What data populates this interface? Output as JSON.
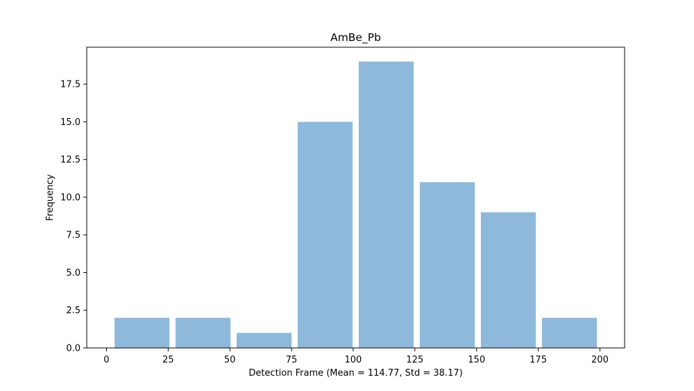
{
  "chart_data": {
    "type": "bar",
    "title": "AmBe_Pb",
    "xlabel": "Detection Frame (Mean = 114.77, Std = 38.17)",
    "ylabel": "Frequency",
    "bins": [
      {
        "start": 2,
        "end": 26.75,
        "value": 2
      },
      {
        "start": 26.75,
        "end": 51.5,
        "value": 2
      },
      {
        "start": 51.5,
        "end": 76.25,
        "value": 1
      },
      {
        "start": 76.25,
        "end": 101,
        "value": 15
      },
      {
        "start": 101,
        "end": 125.75,
        "value": 19
      },
      {
        "start": 125.75,
        "end": 150.5,
        "value": 11
      },
      {
        "start": 150.5,
        "end": 175.25,
        "value": 9
      },
      {
        "start": 175.25,
        "end": 200,
        "value": 2
      }
    ],
    "xlim": [
      -8,
      210
    ],
    "ylim": [
      0,
      19.95
    ],
    "xticks": [
      0,
      25,
      50,
      75,
      100,
      125,
      150,
      175,
      200
    ],
    "xtick_labels": [
      "0",
      "25",
      "50",
      "75",
      "100",
      "125",
      "150",
      "175",
      "200"
    ],
    "yticks": [
      0,
      2.5,
      5,
      7.5,
      10,
      12.5,
      15,
      17.5
    ],
    "ytick_labels": [
      "0.0",
      "2.5",
      "5.0",
      "7.5",
      "10.0",
      "12.5",
      "15.0",
      "17.5"
    ],
    "bar_color": "#8fb9da",
    "grid": false,
    "legend": false
  }
}
